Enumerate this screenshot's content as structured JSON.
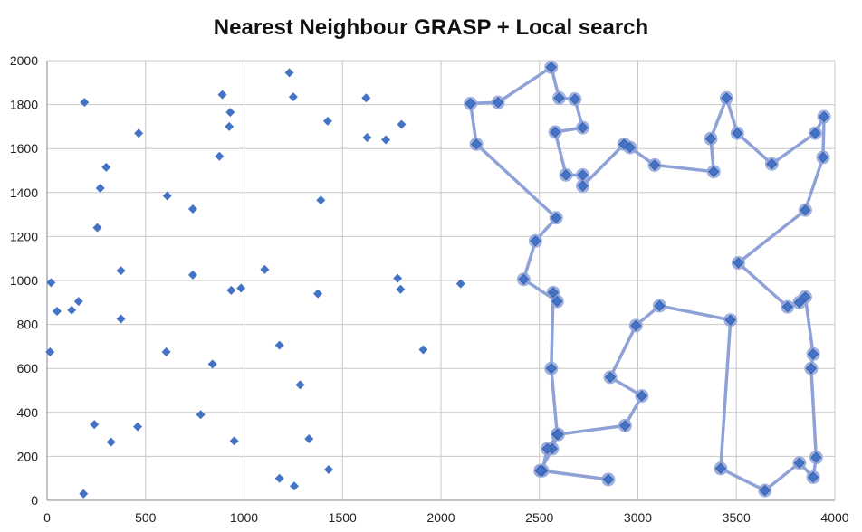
{
  "chart_data": {
    "type": "scatter",
    "title": "Nearest Neighbour GRASP + Local search",
    "xlabel": "",
    "ylabel": "",
    "xlim": [
      0,
      4000
    ],
    "ylim": [
      0,
      2000
    ],
    "x_ticks": [
      0,
      500,
      1000,
      1500,
      2000,
      2500,
      3000,
      3500,
      4000
    ],
    "y_ticks": [
      0,
      200,
      400,
      600,
      800,
      1000,
      1200,
      1400,
      1600,
      1800,
      2000
    ],
    "grid": true,
    "legend": "none",
    "colors": {
      "points": "#4472c4",
      "route": "#8fa2d8",
      "grid": "#c8c8c8",
      "axis": "#888888"
    },
    "series": [
      {
        "kind": "points",
        "x": [
          190,
          465,
          300,
          270,
          255,
          375,
          160,
          50,
          125,
          20,
          375,
          15,
          240,
          325,
          460,
          185,
          890,
          930,
          925,
          875,
          610,
          740,
          740,
          935,
          985,
          605,
          840,
          780,
          950,
          1230,
          1250,
          1425,
          1620,
          1625,
          1720,
          1800,
          1390,
          1105,
          1780,
          1795,
          1375,
          1180,
          1910,
          1285,
          1330,
          1430,
          1180,
          1255,
          2100
        ],
        "y": [
          1810,
          1670,
          1515,
          1420,
          1240,
          1045,
          905,
          860,
          865,
          990,
          825,
          675,
          345,
          265,
          335,
          30,
          1845,
          1765,
          1700,
          1565,
          1385,
          1325,
          1025,
          955,
          965,
          675,
          620,
          390,
          270,
          1945,
          1835,
          1725,
          1830,
          1650,
          1640,
          1710,
          1365,
          1050,
          1010,
          960,
          940,
          705,
          685,
          525,
          280,
          140,
          100,
          65,
          985
        ]
      },
      {
        "kind": "route",
        "x": [
          2505,
          2565,
          2590,
          2560,
          2570,
          2590,
          2420,
          2480,
          2585,
          2180,
          2150,
          2290,
          2560,
          2600,
          2680,
          2720,
          2580,
          2635,
          2720,
          2720,
          2930,
          2960,
          3085,
          3385,
          3370,
          3450,
          3505,
          3680,
          3900,
          3945,
          3940,
          3850,
          3510,
          3760,
          3820,
          3850,
          3890,
          3880,
          3905,
          3890,
          3820,
          3645,
          3420,
          3470,
          3110,
          2990,
          2860,
          3020,
          2935,
          2595,
          2540,
          2515,
          2850,
          2505
        ],
        "y": [
          135,
          235,
          300,
          600,
          945,
          905,
          1005,
          1180,
          1285,
          1620,
          1805,
          1810,
          1970,
          1830,
          1825,
          1695,
          1675,
          1480,
          1480,
          1430,
          1620,
          1605,
          1525,
          1495,
          1645,
          1830,
          1670,
          1530,
          1670,
          1745,
          1560,
          1320,
          1080,
          880,
          900,
          925,
          665,
          600,
          195,
          105,
          170,
          45,
          145,
          820,
          885,
          795,
          560,
          475,
          340,
          300,
          235,
          135,
          95,
          135
        ]
      }
    ]
  }
}
